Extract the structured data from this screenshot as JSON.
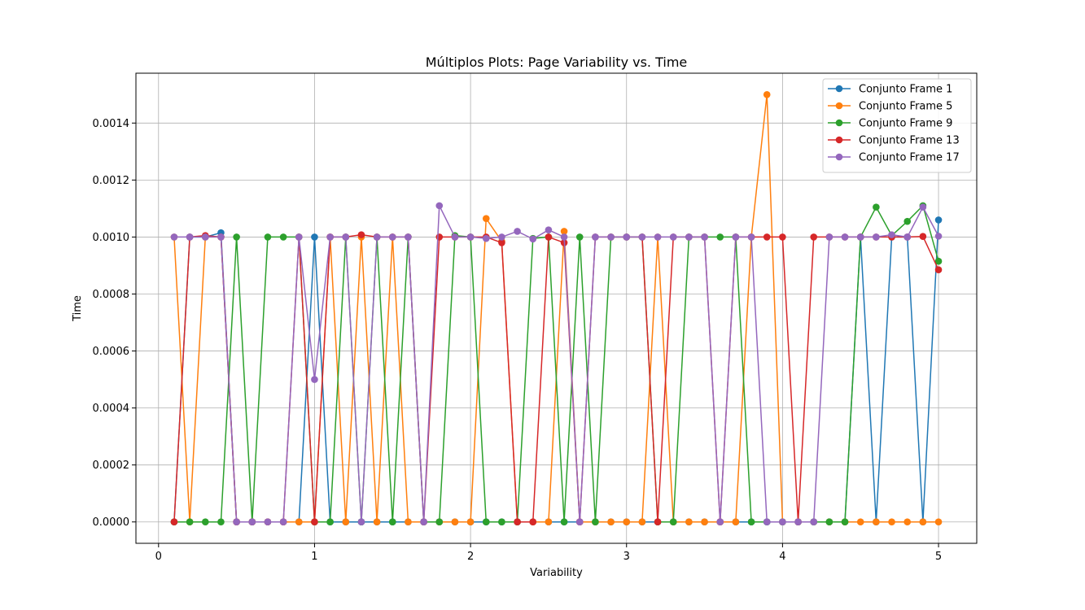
{
  "chart_data": {
    "type": "line",
    "title": "Múltiplos Plots: Page Variability vs. Time",
    "xlabel": "Variability",
    "ylabel": "Time",
    "xlim": [
      -0.145,
      5.245
    ],
    "ylim": [
      -7.5e-05,
      0.001575
    ],
    "xticks": [
      0,
      1,
      2,
      3,
      4,
      5
    ],
    "xtick_labels": [
      "0",
      "1",
      "2",
      "3",
      "4",
      "5"
    ],
    "yticks": [
      0,
      0.0002,
      0.0004,
      0.0006,
      0.0008,
      0.001,
      0.0012,
      0.0014
    ],
    "ytick_labels": [
      "0.0000",
      "0.0002",
      "0.0004",
      "0.0006",
      "0.0008",
      "0.0010",
      "0.0012",
      "0.0014"
    ],
    "grid": true,
    "legend_position": "top-right",
    "x": [
      0.1,
      0.2,
      0.3,
      0.4,
      0.5,
      0.6,
      0.7,
      0.8,
      0.9,
      1.0,
      1.1,
      1.2,
      1.3,
      1.4,
      1.5,
      1.6,
      1.7,
      1.8,
      1.9,
      2.0,
      2.1,
      2.2,
      2.3,
      2.4,
      2.5,
      2.6,
      2.7,
      2.8,
      2.9,
      3.0,
      3.1,
      3.2,
      3.3,
      3.4,
      3.5,
      3.6,
      3.7,
      3.8,
      3.9,
      4.0,
      4.1,
      4.2,
      4.3,
      4.4,
      4.5,
      4.6,
      4.7,
      4.8,
      4.9,
      5.0
    ],
    "series": [
      {
        "name": "Conjunto Frame 1",
        "color": "#1f77b4",
        "values": [
          0,
          0.001,
          0.001,
          0.001015,
          0,
          0,
          0,
          0,
          0,
          0.001,
          0,
          0,
          0,
          0,
          0,
          0,
          0,
          0,
          0,
          0,
          0,
          0,
          0,
          0,
          0,
          0,
          0,
          0,
          0,
          0,
          0,
          0,
          0,
          0,
          0,
          0,
          0,
          0,
          0,
          0,
          0,
          0,
          0,
          0,
          0.001,
          0,
          0.001,
          0.001,
          0,
          0.00106
        ]
      },
      {
        "name": "Conjunto Frame 5",
        "color": "#ff7f0e",
        "values": [
          0.001,
          0,
          0.001,
          0.001,
          0,
          0,
          0,
          0,
          0,
          0,
          0.001,
          0,
          0.001,
          0,
          0.001,
          0,
          0,
          0,
          0,
          0,
          0.001065,
          0.000985,
          0,
          0,
          0,
          0.00102,
          0,
          0,
          0,
          0,
          0,
          0.001,
          0,
          0,
          0,
          0,
          0,
          0.001,
          0.0015,
          0,
          0,
          0,
          0,
          0,
          0,
          0,
          0,
          0,
          0,
          0
        ]
      },
      {
        "name": "Conjunto Frame 9",
        "color": "#2ca02c",
        "values": [
          0,
          0,
          0,
          0,
          0.001,
          0,
          0.001,
          0.001,
          0.001,
          0,
          0,
          0.001,
          0,
          0.001,
          0,
          0.001,
          0,
          0,
          0.001005,
          0.001,
          0,
          0,
          0,
          0.000995,
          0.001,
          0,
          0.001,
          0,
          0.001,
          0.001,
          0.001,
          0,
          0,
          0.001,
          0.001,
          0.001,
          0.001,
          0,
          0,
          0,
          0,
          0,
          0,
          0,
          0.001,
          0.001105,
          0.001005,
          0.001055,
          0.00111,
          0.000915
        ]
      },
      {
        "name": "Conjunto Frame 13",
        "color": "#d62728",
        "values": [
          0,
          0.001,
          0.001005,
          0.001,
          0,
          0,
          0,
          0,
          0.001,
          0,
          0.001,
          0.001,
          0.001008,
          0.001,
          0.001,
          0.001,
          0,
          0.001,
          0.001,
          0.001,
          0.001,
          0.00098,
          0,
          0,
          0.001,
          0.00098,
          0,
          0.001,
          0.001,
          0.001,
          0.001,
          0,
          0.001,
          0.001,
          0.001,
          0,
          0.001,
          0.001,
          0.001,
          0.001,
          0,
          0.001,
          0.001,
          0.001,
          0.001,
          0.001,
          0.001,
          0.001,
          0.001002,
          0.000885
        ]
      },
      {
        "name": "Conjunto Frame 17",
        "color": "#9467bd",
        "values": [
          0.001,
          0.001,
          0.001,
          0.001,
          0,
          0,
          0,
          0,
          0.001,
          0.0005,
          0.001,
          0.001,
          0,
          0.001,
          0.001,
          0.001,
          0,
          0.00111,
          0.001,
          0.001,
          0.000995,
          0.001,
          0.00102,
          0.000993,
          0.001025,
          0.001,
          0,
          0.001,
          0.001,
          0.001,
          0.001,
          0.001,
          0.001,
          0.001,
          0.001,
          0,
          0.001,
          0.001,
          0,
          0,
          0,
          0,
          0.001,
          0.001,
          0.001,
          0.001,
          0.001008,
          0.001,
          0.001105,
          0.001003
        ]
      }
    ]
  }
}
